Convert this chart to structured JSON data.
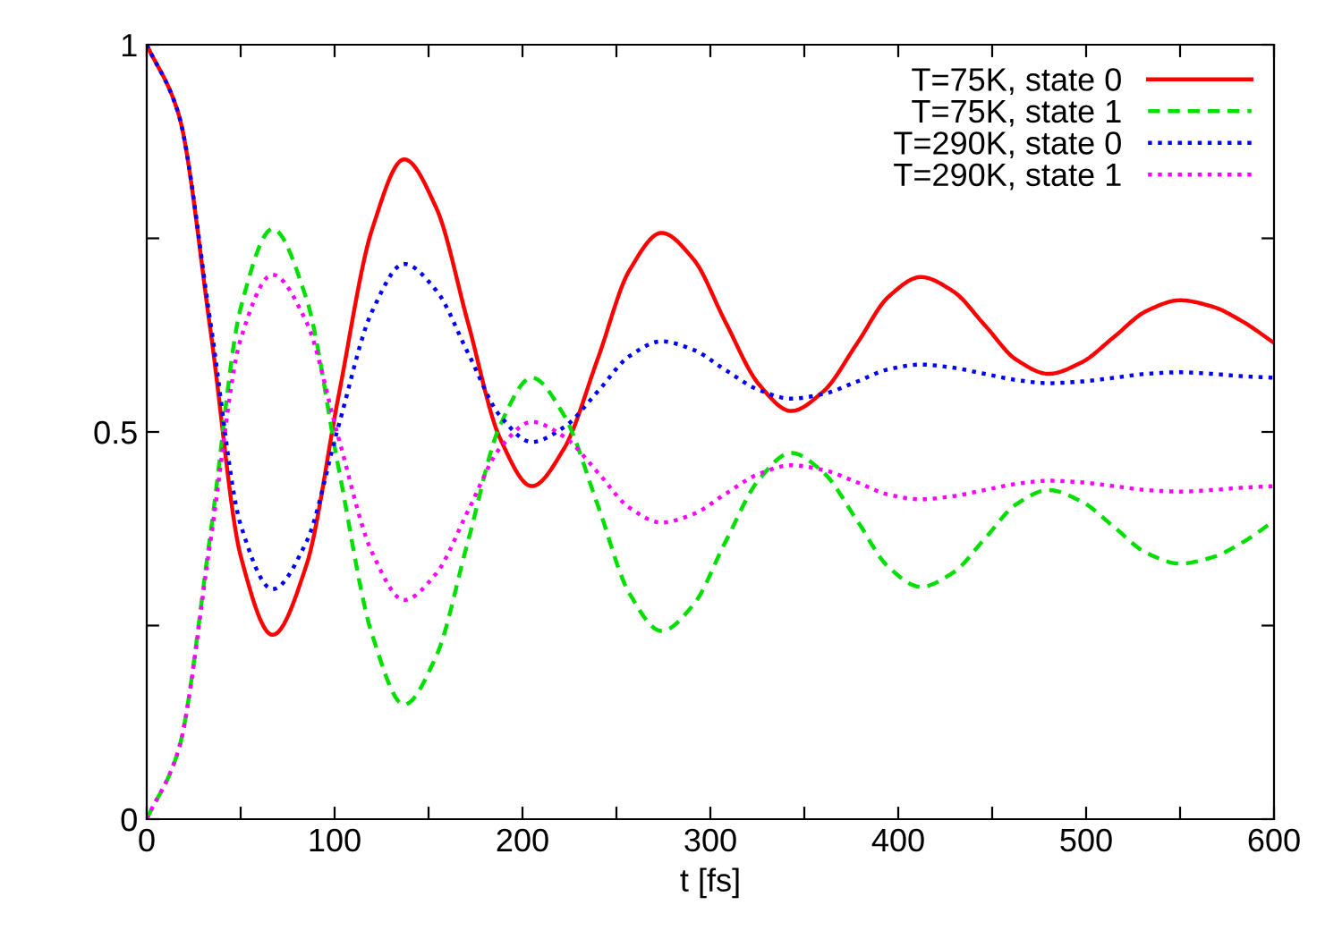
{
  "chart_data": {
    "type": "line",
    "xlabel": "t [fs]",
    "x": [
      0,
      17,
      34,
      50,
      67,
      85,
      102,
      120,
      137,
      154,
      171,
      188,
      205,
      222,
      240,
      257,
      274,
      291,
      308,
      326,
      343,
      360,
      378,
      395,
      412,
      429,
      446,
      463,
      480,
      497,
      515,
      532,
      550,
      567,
      583,
      600
    ],
    "xlim": [
      0,
      600
    ],
    "xticks": [
      0,
      {
        "value": 50,
        "label": null
      },
      100,
      {
        "value": 150,
        "label": null
      },
      200,
      {
        "value": 250,
        "label": null
      },
      300,
      {
        "value": 350,
        "label": null
      },
      400,
      {
        "value": 450,
        "label": null
      },
      500,
      {
        "value": 550,
        "label": null
      },
      600
    ],
    "ylim": [
      0,
      1
    ],
    "yticks": [
      0,
      {
        "value": 0.25,
        "label": null
      },
      0.5,
      {
        "value": 0.75,
        "label": null
      },
      1
    ],
    "legend": "top right",
    "grid": false,
    "marker": "none",
    "series": [
      {
        "name": "T=75K, state 0",
        "color": "#ff0000",
        "line_style": "solid",
        "values": [
          1,
          0.91,
          0.63,
          0.34,
          0.238,
          0.328,
          0.545,
          0.762,
          0.852,
          0.79,
          0.641,
          0.492,
          0.43,
          0.478,
          0.594,
          0.709,
          0.757,
          0.723,
          0.642,
          0.561,
          0.527,
          0.552,
          0.614,
          0.675,
          0.7,
          0.682,
          0.638,
          0.593,
          0.575,
          0.589,
          0.623,
          0.656,
          0.67,
          0.662,
          0.643,
          0.615
        ]
      },
      {
        "name": "T=75K, state 1",
        "color": "#00e000",
        "line_style": "dashed",
        "values": [
          0,
          0.09,
          0.37,
          0.66,
          0.762,
          0.672,
          0.455,
          0.238,
          0.148,
          0.21,
          0.359,
          0.508,
          0.57,
          0.522,
          0.406,
          0.291,
          0.243,
          0.277,
          0.358,
          0.439,
          0.473,
          0.448,
          0.386,
          0.325,
          0.3,
          0.318,
          0.362,
          0.407,
          0.425,
          0.411,
          0.377,
          0.344,
          0.33,
          0.338,
          0.357,
          0.385
        ]
      },
      {
        "name": "T=290K, state 0",
        "color": "#0000ff",
        "line_style": "dotted",
        "values": [
          1,
          0.91,
          0.64,
          0.38,
          0.297,
          0.358,
          0.507,
          0.656,
          0.717,
          0.683,
          0.602,
          0.521,
          0.487,
          0.506,
          0.552,
          0.598,
          0.617,
          0.606,
          0.58,
          0.554,
          0.543,
          0.549,
          0.565,
          0.581,
          0.587,
          0.583,
          0.575,
          0.567,
          0.563,
          0.565,
          0.57,
          0.575,
          0.577,
          0.575,
          0.572,
          0.57
        ]
      },
      {
        "name": "T=290K, state 1",
        "color": "#ff00ff",
        "line_style": "dotted",
        "values": [
          0,
          0.09,
          0.36,
          0.62,
          0.703,
          0.642,
          0.493,
          0.344,
          0.283,
          0.317,
          0.398,
          0.479,
          0.513,
          0.494,
          0.448,
          0.402,
          0.383,
          0.394,
          0.42,
          0.446,
          0.457,
          0.451,
          0.435,
          0.419,
          0.413,
          0.417,
          0.425,
          0.433,
          0.437,
          0.435,
          0.43,
          0.425,
          0.423,
          0.425,
          0.428,
          0.43
        ]
      }
    ]
  }
}
